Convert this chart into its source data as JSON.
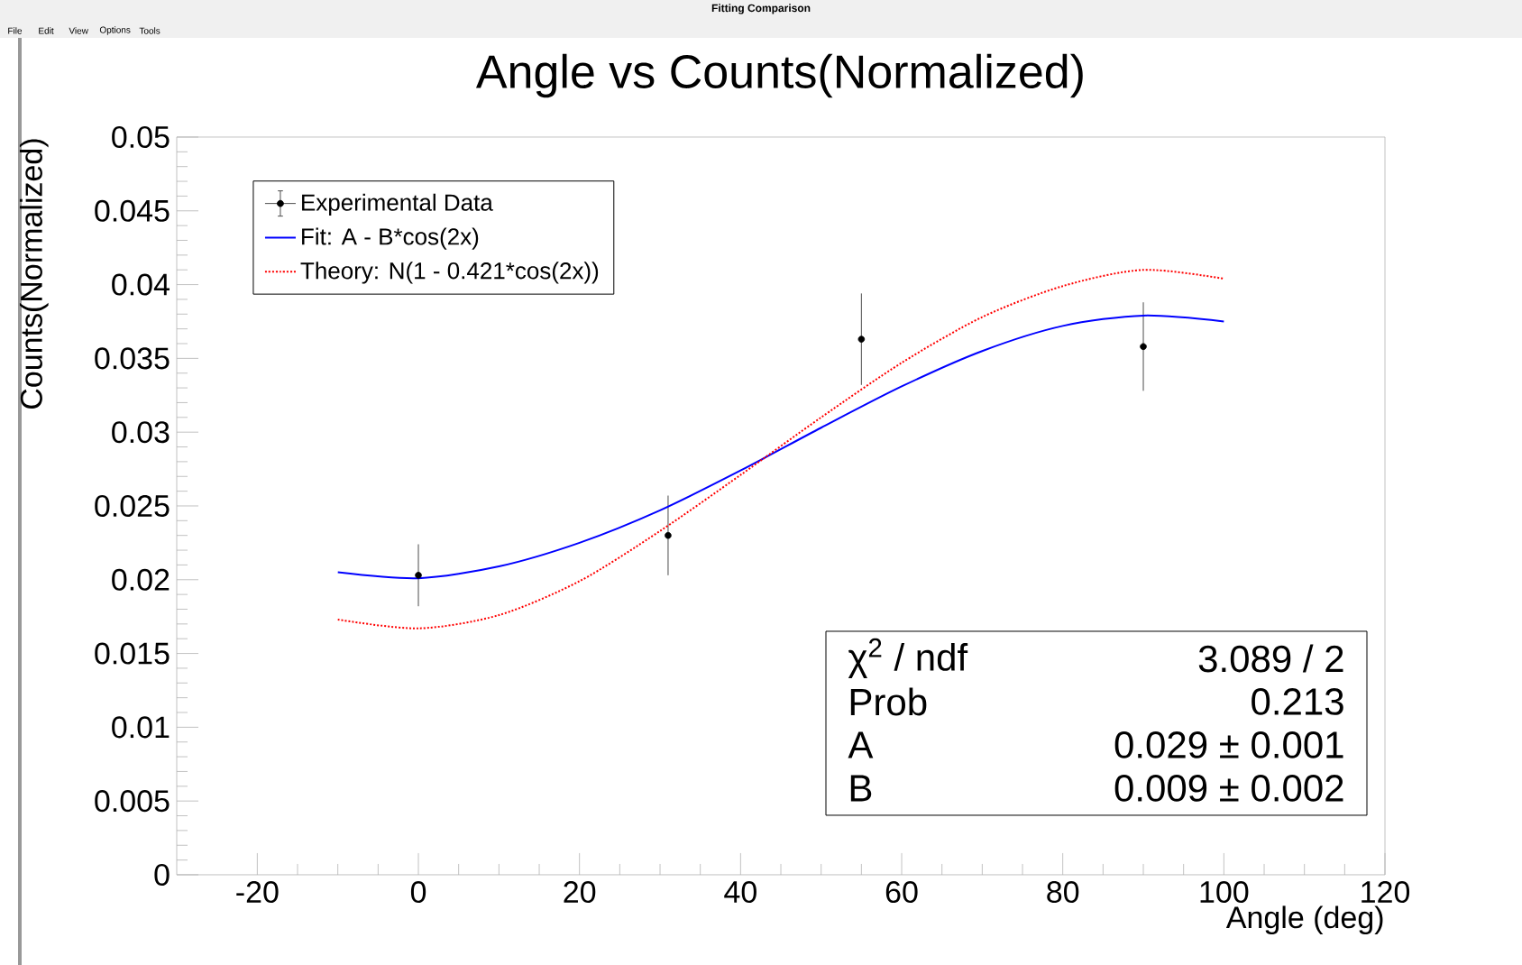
{
  "chart_data": {
    "type": "scatter",
    "title": "Angle vs Counts(Normalized)",
    "xlabel": "Angle (deg)",
    "ylabel": "Counts(Normalized)",
    "xlim": [
      -30,
      120
    ],
    "xticks": [
      -20,
      0,
      20,
      40,
      60,
      80,
      100,
      120
    ],
    "ylim": [
      0,
      0.05
    ],
    "yticks": [
      0,
      0.005,
      0.01,
      0.015,
      0.02,
      0.025,
      0.03,
      0.035,
      0.04,
      0.045,
      0.05
    ],
    "legend": "top left",
    "series": [
      {
        "name": "Experimental Data",
        "color": "#000000",
        "marker": "circle",
        "x": [
          0,
          31,
          55,
          90
        ],
        "values": [
          0.0203,
          0.023,
          0.0363,
          0.0358
        ],
        "errors": [
          0.0021,
          0.0027,
          0.0031,
          0.003
        ]
      },
      {
        "name": "Fit: A - B*cos(2x)",
        "type": "line",
        "color": "#0000ff",
        "line_style": "solid",
        "x": [
          -10,
          0,
          10,
          20,
          30,
          40,
          50,
          60,
          70,
          80,
          90,
          100
        ],
        "values": [
          0.0205,
          0.0201,
          0.0209,
          0.0225,
          0.0247,
          0.0274,
          0.0303,
          0.0331,
          0.0355,
          0.0372,
          0.0379,
          0.0375
        ]
      },
      {
        "name": "Theory: N(1 - 0.421*cos(2x))",
        "type": "line",
        "color": "#ff0000",
        "line_style": "dotted",
        "x": [
          -10,
          0,
          10,
          20,
          30,
          40,
          50,
          60,
          70,
          80,
          90,
          100
        ],
        "values": [
          0.0173,
          0.0167,
          0.0176,
          0.0199,
          0.0233,
          0.0271,
          0.031,
          0.0347,
          0.0378,
          0.0399,
          0.041,
          0.0404
        ]
      }
    ],
    "annotations": [
      "Fitting Comparison",
      "File",
      "Edit",
      "View",
      "Options",
      "Tools",
      "χ$^{2}$ / ndf",
      "3.089 / 2",
      "Prob",
      "0.213",
      "A",
      "0.029 ± 0.001",
      "B",
      "0.009 ± 0.002"
    ]
  }
}
